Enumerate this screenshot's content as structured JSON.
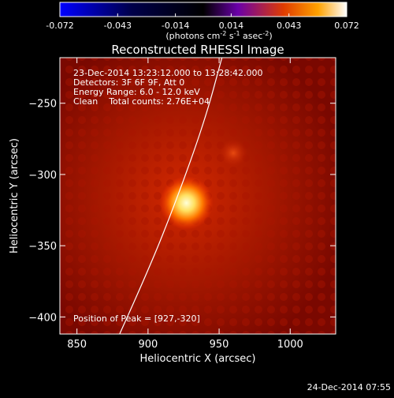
{
  "colorbar": {
    "ticks": [
      "-0.072",
      "-0.043",
      "-0.014",
      "0.014",
      "0.043",
      "0.072"
    ],
    "tick_values": [
      -0.072,
      -0.043,
      -0.014,
      0.014,
      0.043,
      0.072
    ],
    "range": [
      -0.072,
      0.072
    ],
    "unit_main": "(photons cm",
    "unit_sup1": "-2",
    "unit_mid1": " s",
    "unit_sup2": "-1",
    "unit_mid2": " asec",
    "unit_sup3": "-2",
    "unit_end": ")",
    "colors": [
      "#0000ff",
      "#000000",
      "#6a00a8",
      "#e03c00",
      "#ffa200",
      "#ffffff"
    ]
  },
  "chart_data": {
    "type": "heatmap",
    "title": "Reconstructed RHESSI Image",
    "xlabel": "Heliocentric X (arcsec)",
    "ylabel": "Heliocentric Y (arcsec)",
    "xlim": [
      838,
      1032
    ],
    "ylim": [
      -412,
      -218
    ],
    "x_ticks": [
      850,
      900,
      950,
      1000
    ],
    "y_ticks": [
      -250,
      -300,
      -350,
      -400
    ],
    "x_tick_labels": [
      "850",
      "900",
      "950",
      "1000"
    ],
    "y_tick_labels": [
      "−250",
      "−300",
      "−350",
      "−400"
    ],
    "peak": {
      "x": 927,
      "y": -320
    },
    "secondary_source": {
      "x": 960,
      "y": -285
    },
    "limb_curve": [
      [
        880,
        -412
      ],
      [
        900,
        -368
      ],
      [
        920,
        -318
      ],
      [
        940,
        -262
      ],
      [
        952,
        -218
      ]
    ],
    "annotations": [
      "23-Dec-2014 13:23:12.000 to 13:28:42.000",
      "Detectors: 3F 6F 9F, Att 0",
      "Energy Range: 6.0 - 12.0 keV",
      "Clean    Total counts: 2.76E+04"
    ],
    "peak_label": "Position of Peak = [927,-320]"
  },
  "timestamp": "24-Dec-2014 07:55"
}
